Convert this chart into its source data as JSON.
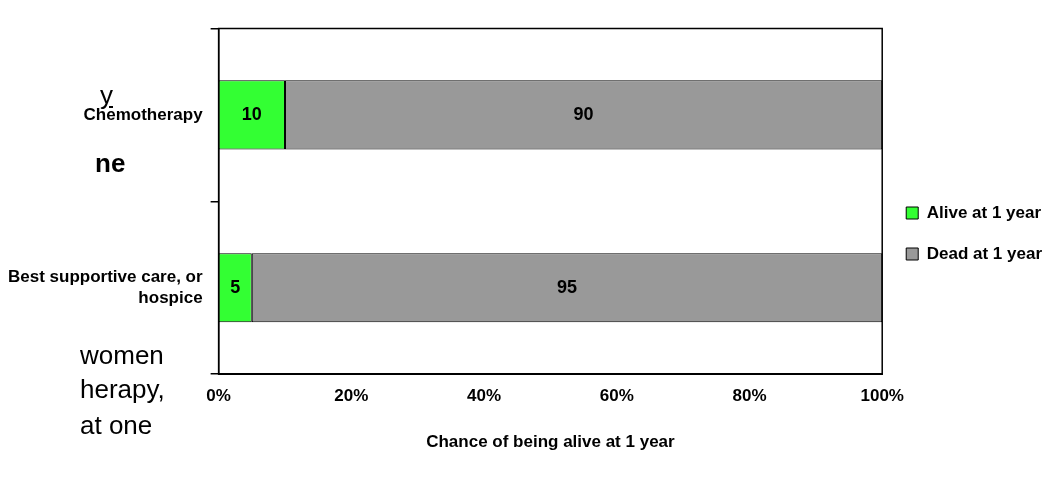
{
  "chart_data": {
    "type": "bar",
    "orientation": "horizontal",
    "stacked": true,
    "categories": [
      "Chemotherapy",
      "Best supportive care, or hospice"
    ],
    "series": [
      {
        "name": "Alive at 1 year",
        "color": "#33ff33",
        "values": [
          10,
          5
        ]
      },
      {
        "name": "Dead at 1 year",
        "color": "#999999",
        "values": [
          90,
          95
        ]
      }
    ],
    "xlim": [
      0,
      100
    ],
    "xticks": [
      {
        "value": 0,
        "label": "0%"
      },
      {
        "value": 20,
        "label": "20%"
      },
      {
        "value": 40,
        "label": "40%"
      },
      {
        "value": 60,
        "label": "60%"
      },
      {
        "value": 80,
        "label": "80%"
      },
      {
        "value": 100,
        "label": "100%"
      }
    ],
    "xlabel": "Chance of being alive at 1 year",
    "data_labels": true,
    "grid": false,
    "legend": "right",
    "annotations": [
      "y",
      "ne",
      "women",
      "herapy,",
      "at one"
    ]
  }
}
